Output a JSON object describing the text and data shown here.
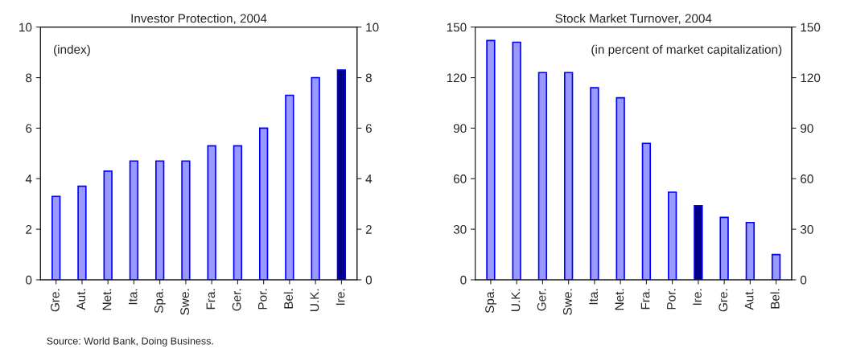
{
  "chart_data": [
    {
      "type": "bar",
      "title": "Investor Protection, 2004",
      "categories": [
        "Gre.",
        "Aut.",
        "Net.",
        "Ita.",
        "Spa.",
        "Swe.",
        "Fra.",
        "Ger.",
        "Por.",
        "Bel.",
        "U.K.",
        "Ire."
      ],
      "values": [
        3.3,
        3.7,
        4.3,
        4.7,
        4.7,
        4.7,
        5.3,
        5.3,
        6.0,
        7.3,
        8.0,
        8.3
      ],
      "colors": [
        "#9999ff",
        "#9999ff",
        "#9999ff",
        "#9999ff",
        "#9999ff",
        "#9999ff",
        "#9999ff",
        "#9999ff",
        "#9999ff",
        "#9999ff",
        "#9999ff",
        "#000080"
      ],
      "ylim": [
        0,
        10
      ],
      "yticks": [
        0,
        2,
        4,
        6,
        8,
        10
      ],
      "y2lim": [
        0,
        10
      ],
      "y2ticks": [
        0,
        2,
        4,
        6,
        8,
        10
      ],
      "annotations": [
        "(index)",
        "Source: World Bank, Doing Business."
      ]
    },
    {
      "type": "bar",
      "title": "Stock Market Turnover, 2004",
      "categories": [
        "Spa.",
        "U.K.",
        "Ger.",
        "Swe.",
        "Ita.",
        "Net.",
        "Fra.",
        "Por.",
        "Ire.",
        "Gre.",
        "Aut.",
        "Bel."
      ],
      "values": [
        142,
        141,
        123,
        123,
        114,
        108,
        81,
        52,
        44,
        37,
        34,
        15
      ],
      "colors": [
        "#9999ff",
        "#9999ff",
        "#9999ff",
        "#9999ff",
        "#9999ff",
        "#9999ff",
        "#9999ff",
        "#9999ff",
        "#000080",
        "#9999ff",
        "#9999ff",
        "#9999ff"
      ],
      "ylim": [
        0,
        150
      ],
      "yticks": [
        0,
        30,
        60,
        90,
        120,
        150
      ],
      "y2lim": [
        0,
        150
      ],
      "y2ticks": [
        0,
        30,
        60,
        90,
        120,
        150
      ],
      "annotations": [
        "(in percent of market capitalization)"
      ]
    }
  ]
}
